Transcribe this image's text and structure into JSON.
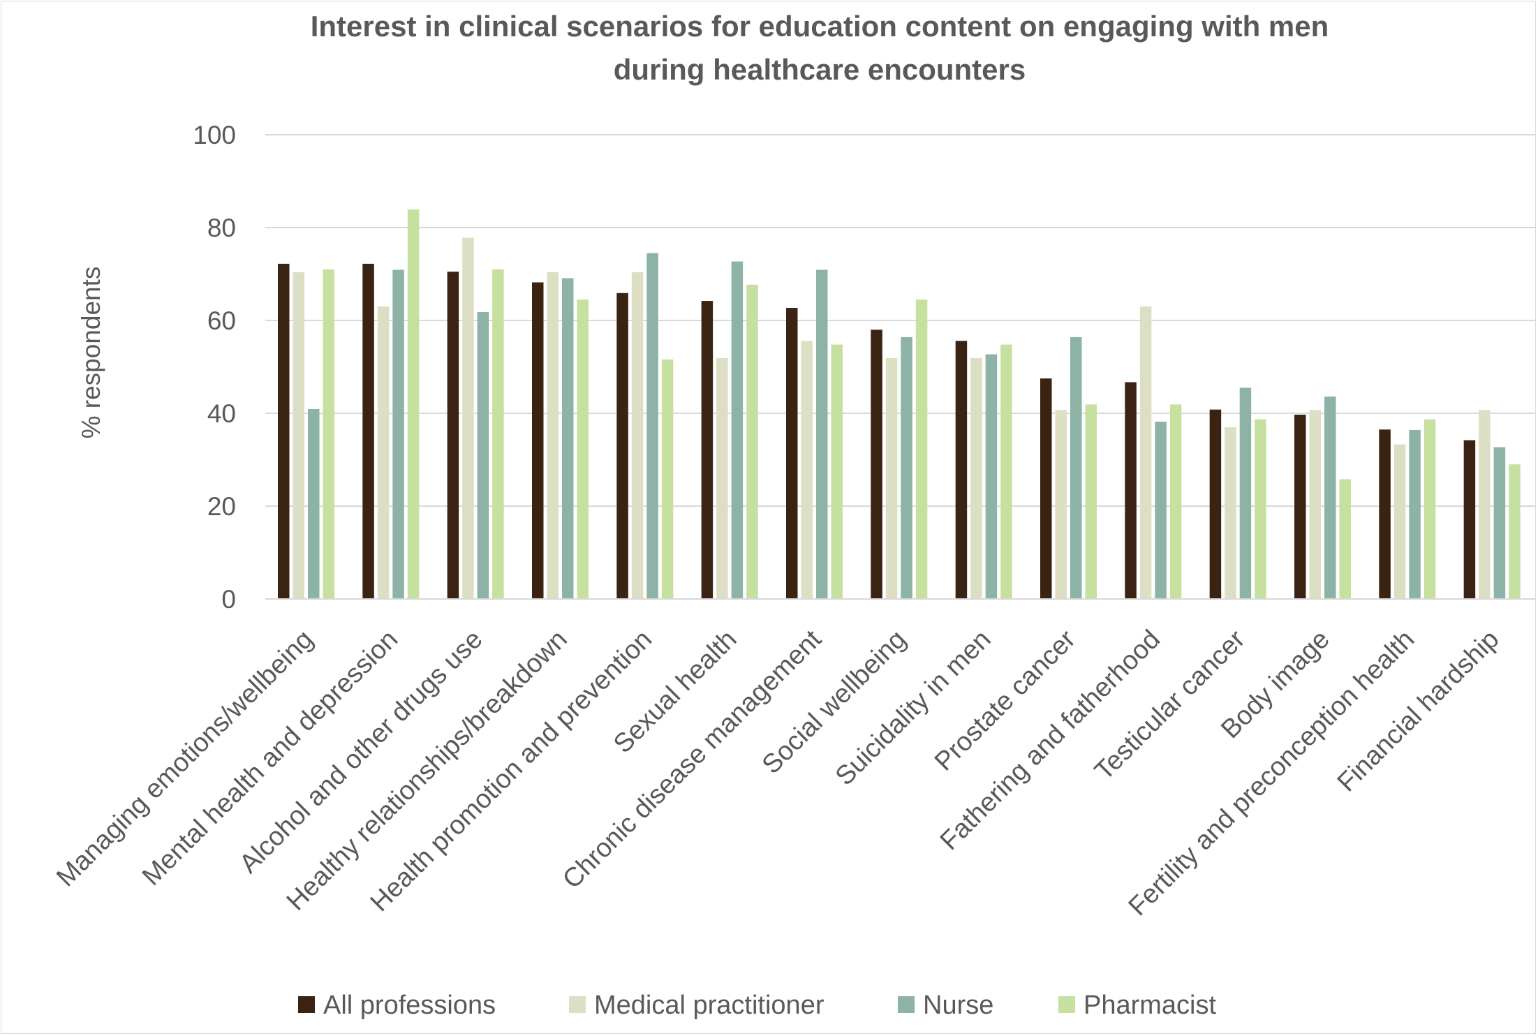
{
  "chart_data": {
    "type": "bar",
    "title": "Interest in clinical scenarios for education content on engaging with men during healthcare encounters",
    "title_lines": [
      "Interest in clinical scenarios for education content on engaging with men",
      "during healthcare encounters"
    ],
    "xlabel": "",
    "ylabel": "% respondents",
    "ylim": [
      0,
      100
    ],
    "yticks": [
      0,
      20,
      40,
      60,
      80,
      100
    ],
    "grid": true,
    "legend_position": "bottom",
    "categories": [
      "Managing emotions/wellbeing",
      "Mental health and depression",
      "Alcohol and other drugs use",
      "Healthy relationships/breakdown",
      "Health promotion and prevention",
      "Sexual health",
      "Chronic disease management",
      "Social wellbeing",
      "Suicidality in men",
      "Prostate cancer",
      "Fathering and fatherhood",
      "Testicular cancer",
      "Body image",
      "Fertility and preconception health",
      "Financial hardship"
    ],
    "series": [
      {
        "name": "All professions",
        "color": "#3b2314",
        "values": [
          72.2,
          72.2,
          70.5,
          68.2,
          65.9,
          64.2,
          62.7,
          58.0,
          55.6,
          47.5,
          46.7,
          40.8,
          39.7,
          36.5,
          34.2
        ]
      },
      {
        "name": "Medical practitioner",
        "color": "#dcdfc3",
        "values": [
          70.4,
          63.0,
          77.8,
          70.4,
          70.4,
          51.9,
          55.6,
          51.9,
          51.9,
          40.7,
          63.0,
          37.0,
          40.7,
          33.3,
          40.7
        ]
      },
      {
        "name": "Nurse",
        "color": "#8cb3a5",
        "values": [
          40.9,
          70.9,
          61.8,
          69.1,
          74.5,
          72.7,
          70.9,
          56.4,
          52.7,
          56.4,
          38.2,
          45.5,
          43.6,
          36.4,
          32.7
        ]
      },
      {
        "name": "Pharmacist",
        "color": "#c6e0a0",
        "values": [
          71.0,
          83.9,
          71.0,
          64.5,
          51.6,
          67.7,
          54.8,
          64.5,
          54.8,
          41.9,
          41.9,
          38.7,
          25.8,
          38.7,
          29.0
        ]
      }
    ]
  }
}
